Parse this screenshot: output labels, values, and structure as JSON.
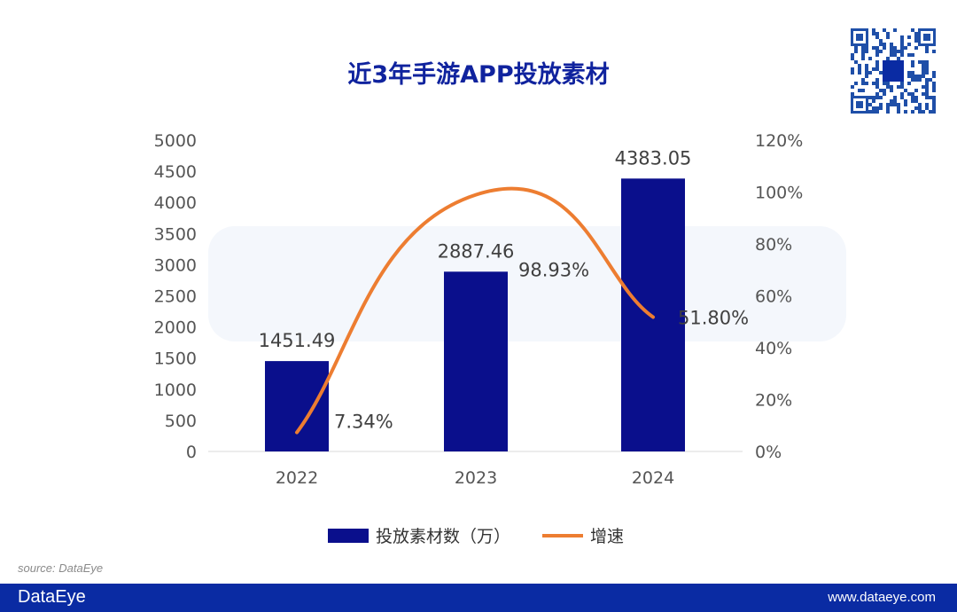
{
  "title": "近3年手游APP投放素材",
  "source": "source: DataEye",
  "footer": {
    "logo": "DataEye",
    "url": "www.dataeye.com"
  },
  "watermark": "DataEye",
  "colors": {
    "bar": "#0a0f8c",
    "line": "#ed7d31",
    "footer": "#0a2ba3",
    "title": "#10239e"
  },
  "chart_data": {
    "type": "bar+line",
    "title": "近3年手游APP投放素材",
    "categories": [
      "2022",
      "2023",
      "2024"
    ],
    "series": [
      {
        "name": "投放素材数（万）",
        "type": "bar",
        "axis": "left",
        "values": [
          1451.49,
          2887.46,
          4383.05
        ],
        "labels": [
          "1451.49",
          "2887.46",
          "4383.05"
        ]
      },
      {
        "name": "增速",
        "type": "line",
        "axis": "right",
        "values": [
          7.34,
          98.93,
          51.8
        ],
        "labels": [
          "7.34%",
          "98.93%",
          "51.80%"
        ]
      }
    ],
    "y_left": {
      "range": [
        0,
        5000
      ],
      "ticks": [
        "0",
        "500",
        "1000",
        "1500",
        "2000",
        "2500",
        "3000",
        "3500",
        "4000",
        "4500",
        "5000"
      ]
    },
    "y_right": {
      "range": [
        0,
        120
      ],
      "ticks": [
        "0%",
        "20%",
        "40%",
        "60%",
        "80%",
        "100%",
        "120%"
      ]
    },
    "grid": false,
    "legend": "bottom"
  }
}
